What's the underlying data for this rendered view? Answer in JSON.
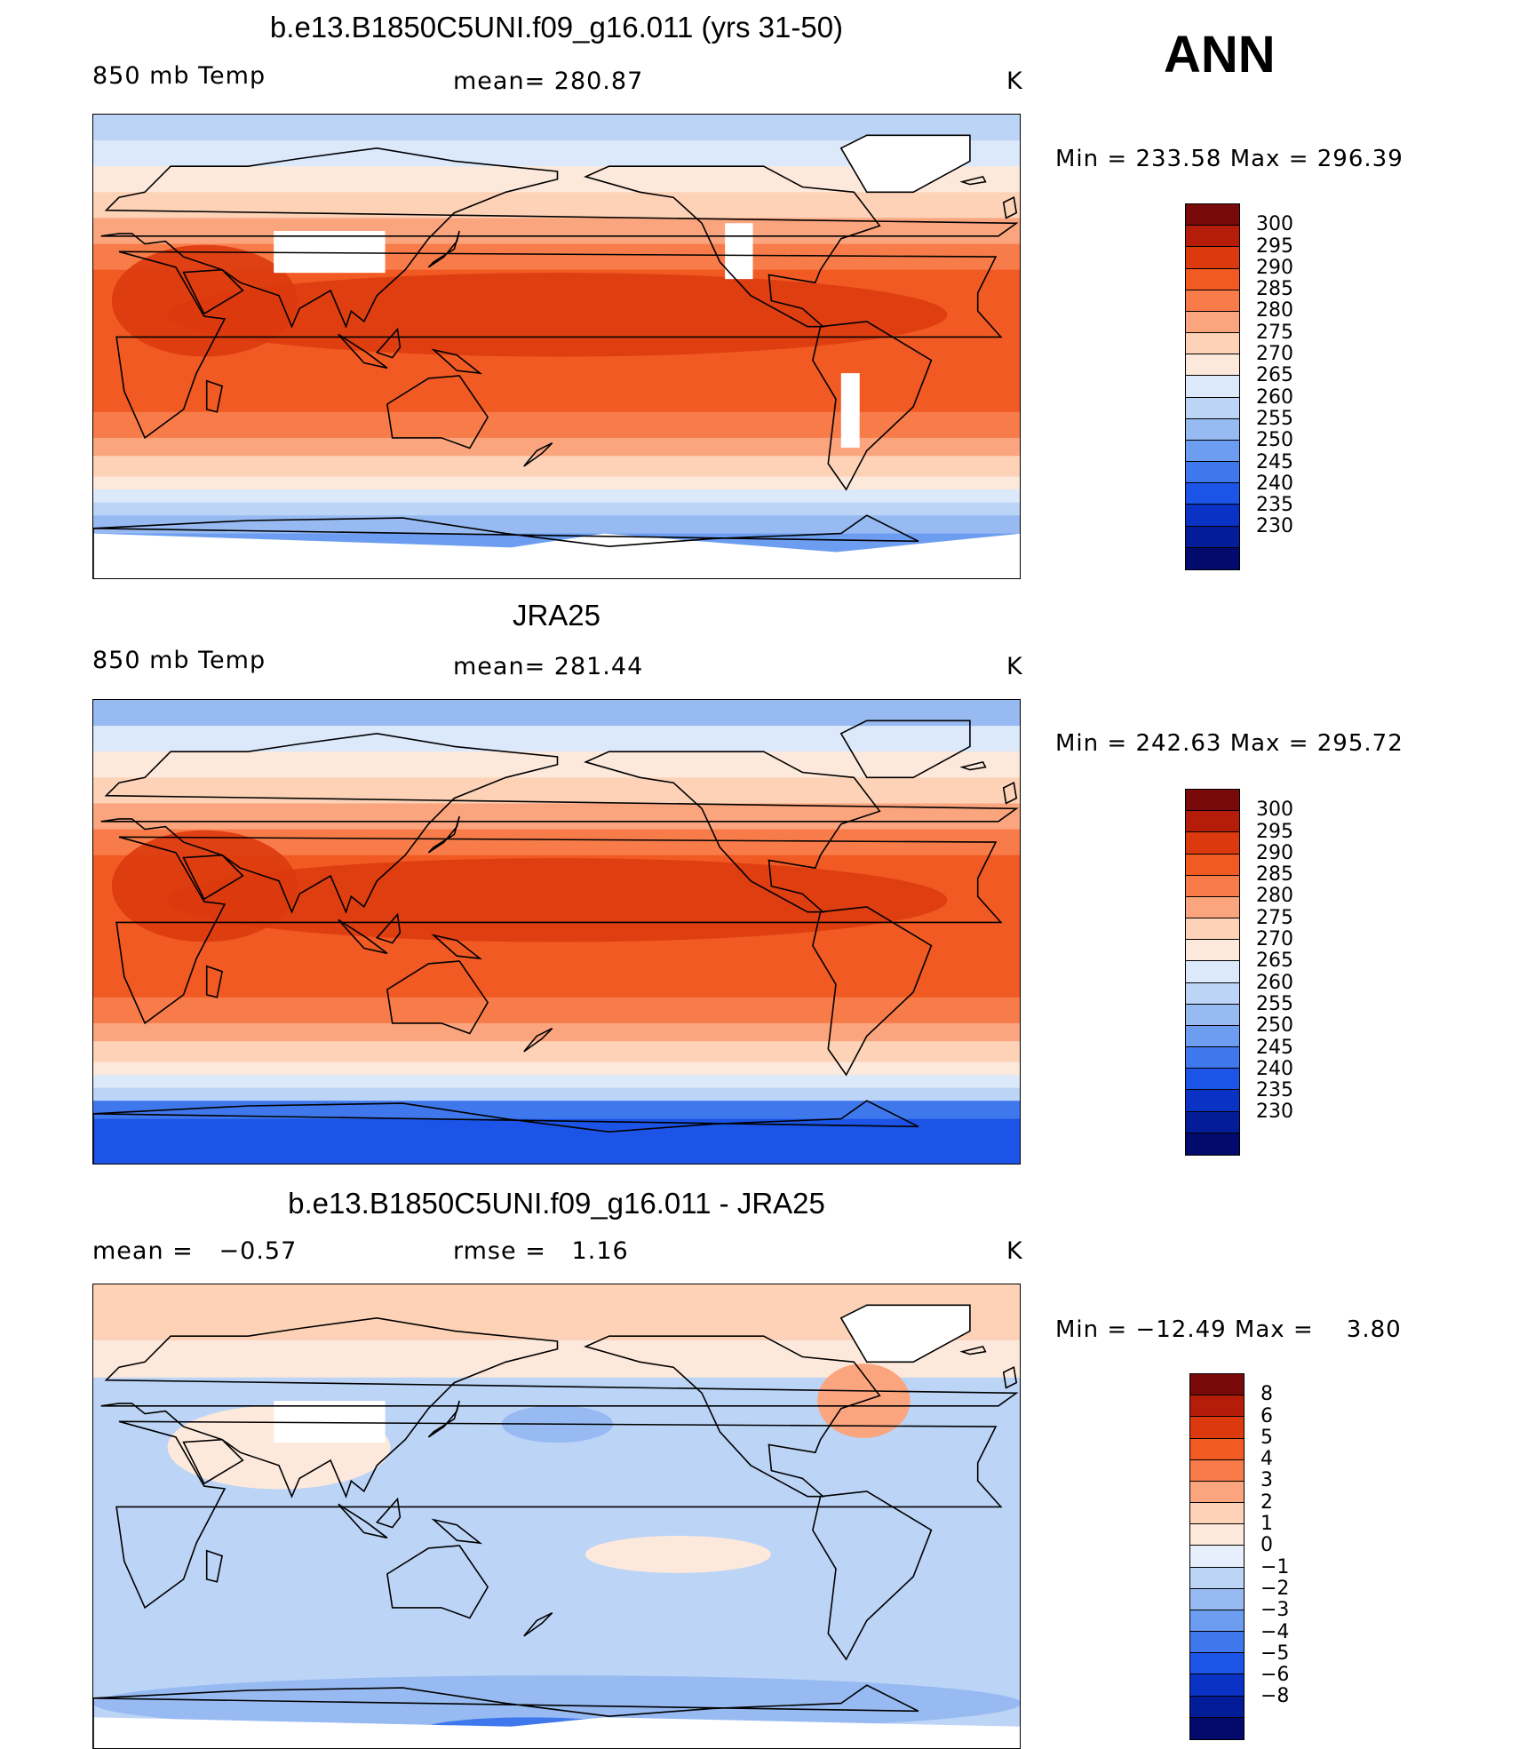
{
  "season": "ANN",
  "panels": [
    {
      "title": "b.e13.B1850C5UNI.f09_g16.011 (yrs 31-50)",
      "left_label": "850 mb Temp",
      "center_label": "mean= 280.87",
      "units": "K",
      "minmax": "Min = 233.58 Max = 296.39",
      "colorbar": "abs"
    },
    {
      "title": "JRA25",
      "left_label": "850 mb Temp",
      "center_label": "mean= 281.44",
      "units": "K",
      "minmax": "Min = 242.63 Max = 295.72",
      "colorbar": "abs"
    },
    {
      "title": "b.e13.B1850C5UNI.f09_g16.011 - JRA25",
      "left_label": "mean =   −0.57",
      "center_label": "rmse =   1.16",
      "units": "K",
      "minmax": "Min = −12.49 Max =    3.80",
      "colorbar": "diff"
    }
  ],
  "colorbars": {
    "abs": {
      "colors": [
        "#7a0a0a",
        "#b51d0a",
        "#dc3a0e",
        "#f15a22",
        "#f87c4a",
        "#fba57f",
        "#fdd2b7",
        "#fde9dc",
        "#dbe9fa",
        "#bcd4f6",
        "#96baf1",
        "#6c9df1",
        "#3f78ec",
        "#1b54e6",
        "#0a33c6",
        "#031c97",
        "#020a6b"
      ],
      "labels": [
        "300",
        "295",
        "290",
        "285",
        "280",
        "275",
        "270",
        "265",
        "260",
        "255",
        "250",
        "245",
        "240",
        "235",
        "230"
      ]
    },
    "diff": {
      "colors": [
        "#7a0a0a",
        "#b51d0a",
        "#dc3a0e",
        "#f15a22",
        "#f87c4a",
        "#fba57f",
        "#fdd2b7",
        "#fde9dc",
        "#e6effb",
        "#bcd4f6",
        "#96baf1",
        "#6c9df1",
        "#3f78ec",
        "#1b54e6",
        "#0a33c6",
        "#031c97",
        "#020a6b"
      ],
      "labels": [
        "8",
        "6",
        "5",
        "4",
        "3",
        "2",
        "1",
        "0",
        "−1",
        "−2",
        "−3",
        "−4",
        "−5",
        "−6",
        "−8"
      ]
    }
  }
}
